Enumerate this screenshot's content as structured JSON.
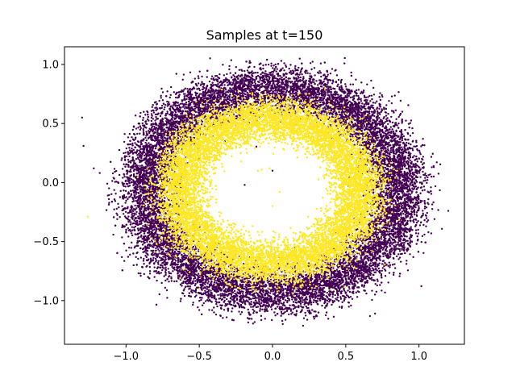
{
  "chart_data": {
    "type": "scatter",
    "title": "Samples at t=150",
    "xlabel": "",
    "ylabel": "",
    "xlim": [
      -1.42,
      1.31
    ],
    "ylim": [
      -1.37,
      1.15
    ],
    "xticks": [
      -1.0,
      -0.5,
      0.0,
      0.5,
      1.0
    ],
    "yticks": [
      -1.0,
      -0.5,
      0.0,
      0.5,
      1.0
    ],
    "xtick_labels": [
      "−1.0",
      "−0.5",
      "0.0",
      "0.5",
      "1.0"
    ],
    "ytick_labels": [
      "−1.0",
      "−0.5",
      "0.0",
      "0.5",
      "1.0"
    ],
    "grid": false,
    "legend": "none",
    "marker_size": 1.2,
    "series": [
      {
        "color": "#440154",
        "distribution": "noisy ring",
        "center": [
          0.0,
          -0.07
        ],
        "radius_mean": 0.87,
        "radius_sd": 0.1,
        "point_count": 14000,
        "outliers": [
          [
            -1.3,
            0.55
          ],
          [
            -1.29,
            0.31
          ],
          [
            1.2,
            -0.24
          ],
          [
            1.1,
            0.14
          ],
          [
            -1.22,
            0.12
          ],
          [
            -0.19,
            -0.02
          ],
          [
            0.06,
            1.03
          ],
          [
            0.7,
            -1.11
          ],
          [
            0.0,
            0.1
          ],
          [
            0.15,
            -0.55
          ],
          [
            -0.5,
            -1.08
          ]
        ]
      },
      {
        "color": "#fde725",
        "distribution": "noisy ring",
        "center": [
          -0.02,
          -0.07
        ],
        "radius_mean": 0.62,
        "radius_sd": 0.09,
        "point_count": 12000,
        "outliers": [
          [
            -1.26,
            -0.29
          ],
          [
            -0.02,
            0.12
          ],
          [
            0.05,
            -0.08
          ],
          [
            -0.1,
            0.1
          ],
          [
            0.0,
            -0.2
          ],
          [
            -0.5,
            -0.9
          ],
          [
            0.4,
            -0.9
          ]
        ]
      }
    ]
  }
}
